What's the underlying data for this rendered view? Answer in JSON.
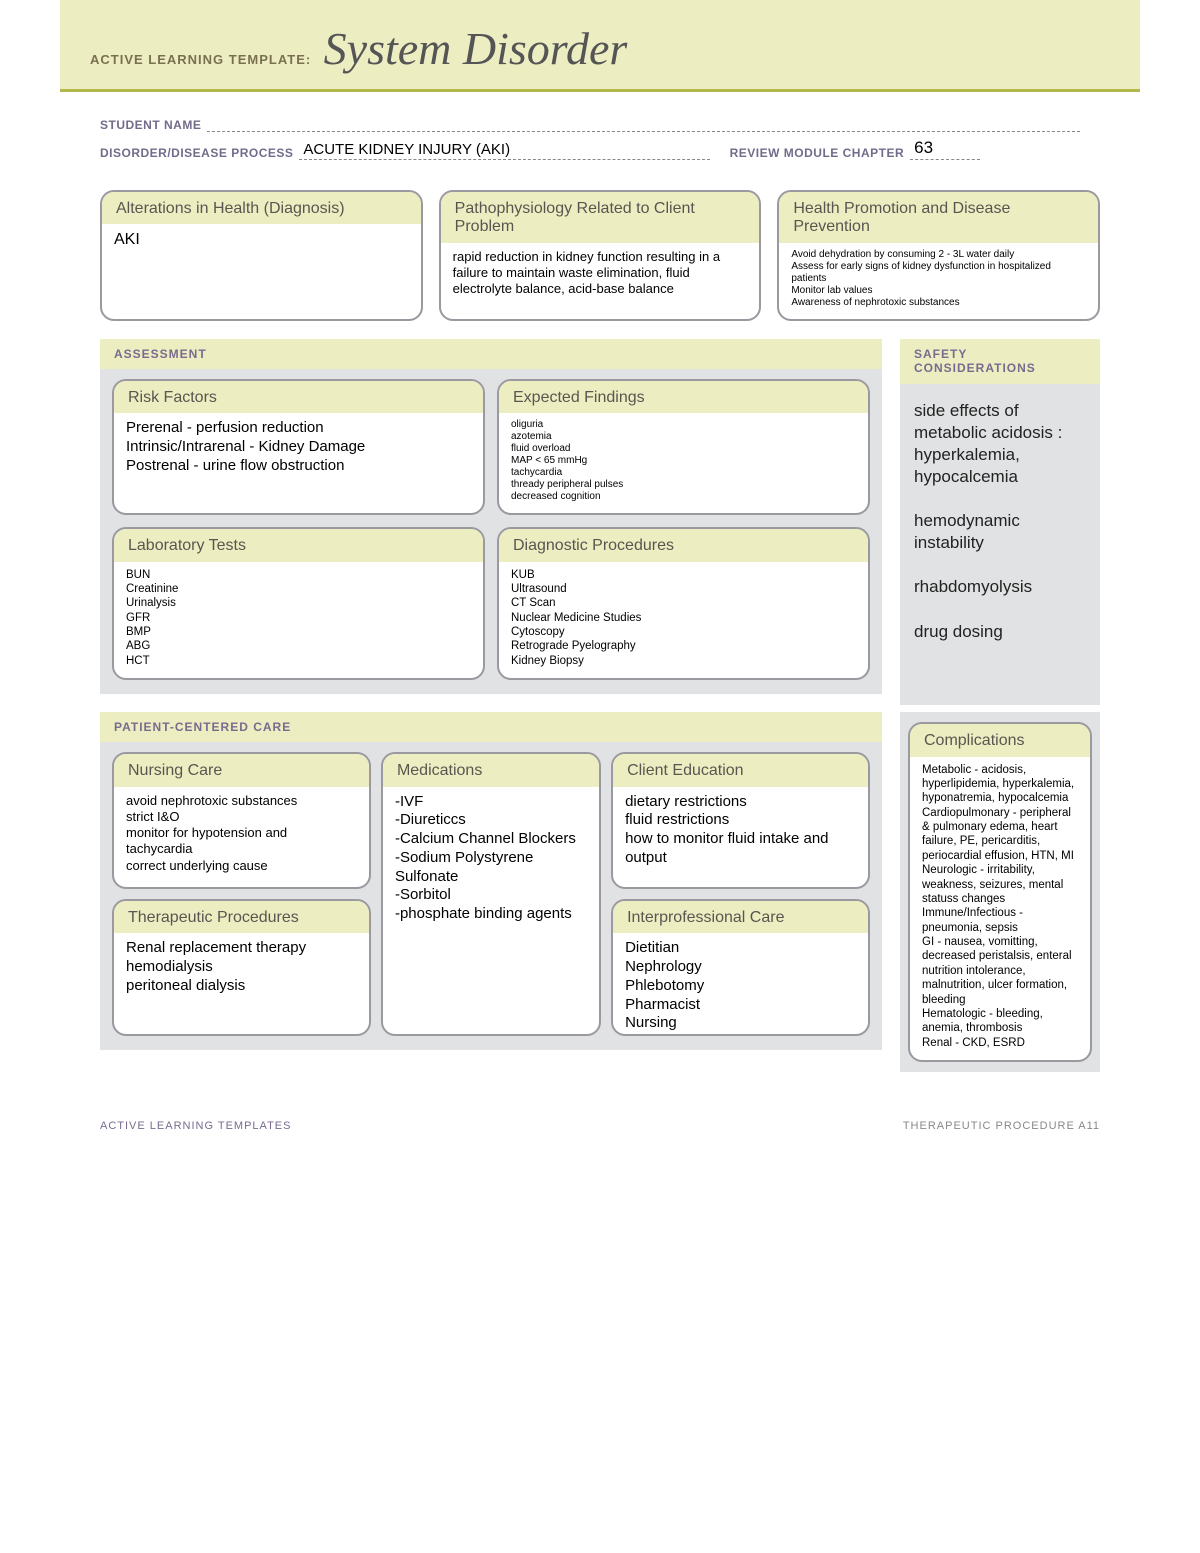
{
  "colors": {
    "banner_bg": "#eceec2",
    "banner_rule": "#b3b84d",
    "box_border": "#9b99a0",
    "field_label": "#736b8a",
    "section_label": "#7a6a8e",
    "grey_bg": "#e1e2e3"
  },
  "header": {
    "template_label": "ACTIVE LEARNING TEMPLATE:",
    "title": "System Disorder"
  },
  "fields": {
    "student_name_label": "STUDENT NAME",
    "student_name_value": "",
    "disorder_label": "DISORDER/DISEASE PROCESS",
    "disorder_value": "ACUTE KIDNEY INJURY (AKI)",
    "chapter_label": "REVIEW MODULE CHAPTER",
    "chapter_value": "63"
  },
  "top": {
    "alterations": {
      "title": "Alterations in Health (Diagnosis)",
      "body": "AKI"
    },
    "patho": {
      "title": "Pathophysiology Related to Client Problem",
      "body": "rapid reduction in kidney function resulting in a failure to maintain waste elimination, fluid electrolyte balance, acid-base balance"
    },
    "health_promo": {
      "title": "Health Promotion and Disease Prevention",
      "body": "Avoid dehydration by consuming 2 - 3L water daily\nAssess for early signs of kidney dysfunction in hospitalized patients\nMonitor lab values\nAwareness of nephrotoxic substances"
    }
  },
  "assessment": {
    "section_label": "ASSESSMENT",
    "risk": {
      "title": "Risk Factors",
      "body": "Prerenal - perfusion reduction\nIntrinsic/Intrarenal - Kidney Damage\nPostrenal - urine flow obstruction"
    },
    "expected": {
      "title": "Expected Findings",
      "body": "oliguria\nazotemia\nfluid overload\nMAP < 65 mmHg\ntachycardia\nthready peripheral pulses\ndecreased cognition"
    },
    "labs": {
      "title": "Laboratory Tests",
      "body": "BUN\nCreatinine\nUrinalysis\nGFR\nBMP\nABG\nHCT"
    },
    "diag": {
      "title": "Diagnostic Procedures",
      "body": "KUB\nUltrasound\nCT Scan\nNuclear Medicine Studies\nCytoscopy\nRetrograde Pyelography\nKidney Biopsy"
    }
  },
  "safety": {
    "section_label": "SAFETY CONSIDERATIONS",
    "body": "side effects of metabolic acidosis : hyperkalemia, hypocalcemia\n\nhemodynamic instability\n\nrhabdomyolysis\n\ndrug dosing"
  },
  "care": {
    "section_label": "PATIENT-CENTERED CARE",
    "nursing": {
      "title": "Nursing Care",
      "body": "avoid nephrotoxic substances\nstrict I&O\nmonitor for hypotension and tachycardia\ncorrect underlying cause"
    },
    "meds": {
      "title": "Medications",
      "body": "-IVF\n-Diureticcs\n-Calcium Channel Blockers\n-Sodium Polystyrene Sulfonate\n-Sorbitol\n-phosphate binding agents"
    },
    "client_ed": {
      "title": "Client Education",
      "body": "dietary restrictions\nfluid restrictions\nhow to monitor fluid intake and output"
    },
    "therapeutic": {
      "title": "Therapeutic Procedures",
      "body": "Renal replacement therapy\nhemodialysis\nperitoneal dialysis"
    },
    "interprof": {
      "title": "Interprofessional Care",
      "body": "Dietitian\nNephrology\nPhlebotomy\nPharmacist\nNursing"
    }
  },
  "complications": {
    "title": "Complications",
    "body": "Metabolic - acidosis, hyperlipidemia, hyperkalemia, hyponatremia, hypocalcemia\nCardiopulmonary - peripheral & pulmonary edema, heart failure, PE, pericarditis, periocardial effusion, HTN, MI\nNeurologic - irritability, weakness, seizures, mental statuss changes\nImmune/Infectious - pneumonia, sepsis\nGI - nausea, vomitting, decreased peristalsis, enteral nutrition intolerance, malnutrition, ulcer formation, bleeding\nHematologic - bleeding, anemia, thrombosis\nRenal - CKD, ESRD"
  },
  "footer": {
    "left": "ACTIVE LEARNING TEMPLATES",
    "right": "THERAPEUTIC PROCEDURE   A11"
  }
}
